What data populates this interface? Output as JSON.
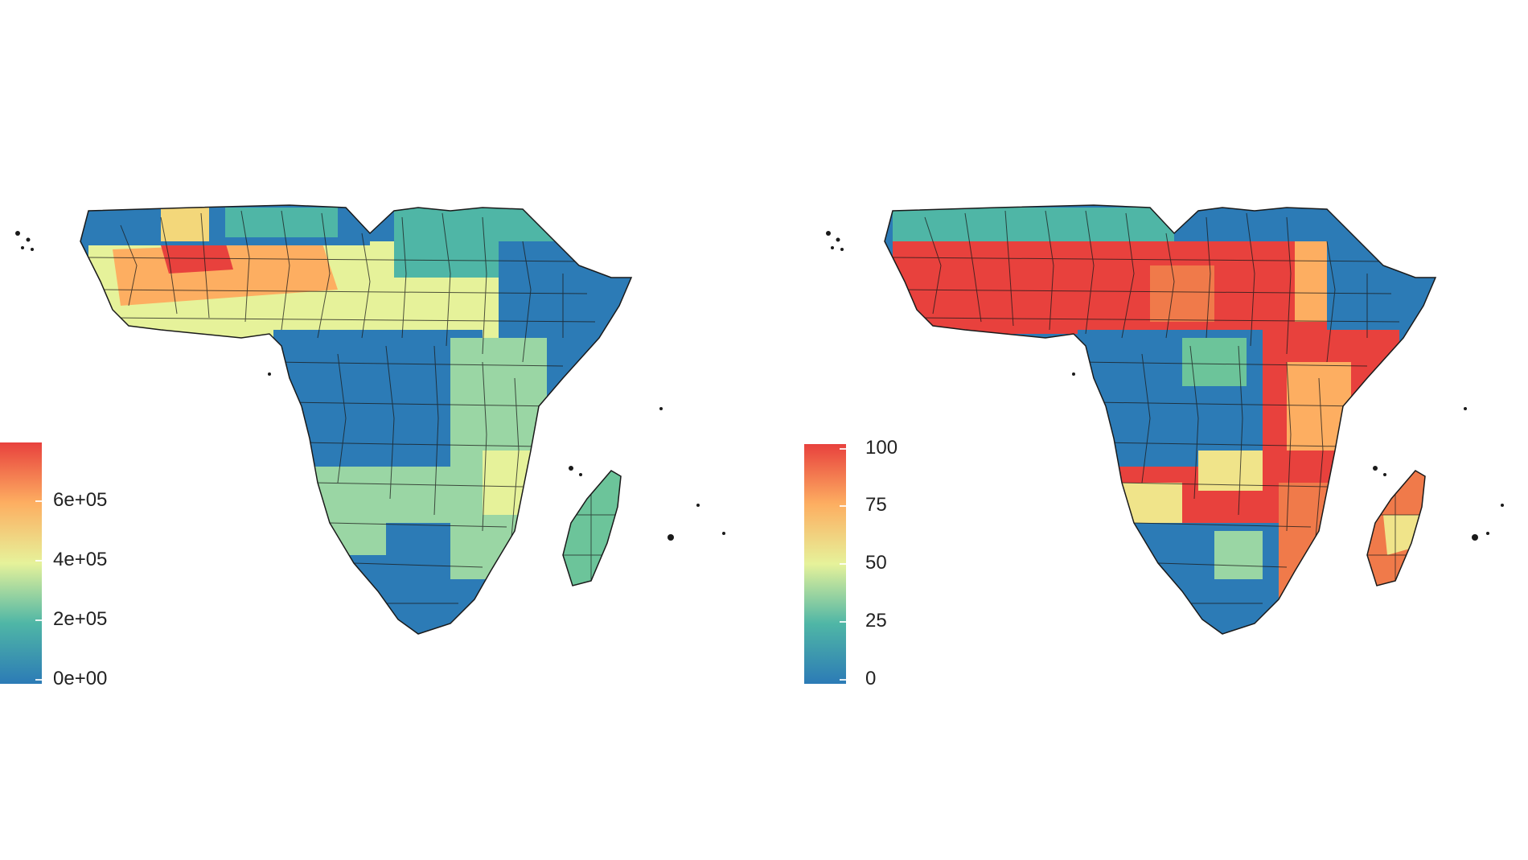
{
  "colors": {
    "low": "#2c7bb6",
    "mid_low": "#4fb6a6",
    "mid": "#e6f29a",
    "mid_high": "#fdae61",
    "high": "#e8413d",
    "boundary": "#1a1a1a"
  },
  "left_map": {
    "legend": {
      "ticks": [
        "6e+05",
        "4e+05",
        "2e+05",
        "0e+00"
      ]
    }
  },
  "right_map": {
    "legend": {
      "ticks": [
        "100",
        "75",
        "50",
        "25",
        "0"
      ]
    }
  }
}
